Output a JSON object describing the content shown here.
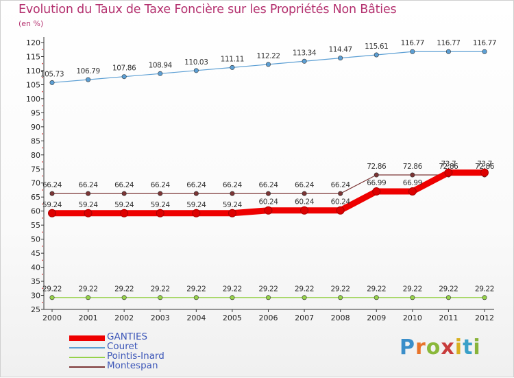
{
  "title": "Evolution du Taux de Taxe Foncière sur les Propriétés Non Bâties",
  "unit": "(en %)",
  "brand": {
    "letters": [
      "P",
      "r",
      "o",
      "x",
      "i",
      "t",
      "i"
    ],
    "colors": [
      "#3a8ec9",
      "#e8742a",
      "#8ab83a",
      "#c83c3c",
      "#d8b020",
      "#3aa0c8",
      "#88b33a"
    ]
  },
  "chart_data": {
    "type": "line",
    "title": "Evolution du Taux de Taxe Foncière sur les Propriétés Non Bâties",
    "ylabel": "(en %)",
    "x": [
      "2000",
      "2001",
      "2002",
      "2003",
      "2004",
      "2005",
      "2006",
      "2007",
      "2008",
      "2009",
      "2010",
      "2011",
      "2012"
    ],
    "ylim": [
      25,
      120
    ],
    "yticks": [
      25,
      30,
      35,
      40,
      45,
      50,
      55,
      60,
      65,
      70,
      75,
      80,
      85,
      90,
      95,
      100,
      105,
      110,
      115,
      120
    ],
    "grid": false,
    "legend": "bottom-left",
    "series": [
      {
        "name": "Couret",
        "color": "#5c9fd4",
        "values": [
          105.73,
          106.79,
          107.86,
          108.94,
          110.03,
          111.11,
          112.22,
          113.34,
          114.47,
          115.61,
          116.77,
          116.77,
          116.77
        ],
        "labels": [
          "105.73",
          "106.79",
          "107.86",
          "108.94",
          "110.03",
          "111.11",
          "112.22",
          "113.34",
          "114.47",
          "115.61",
          "116.77",
          "116.77",
          "116.77"
        ]
      },
      {
        "name": "Montespan",
        "color": "#7b3535",
        "values": [
          66.24,
          66.24,
          66.24,
          66.24,
          66.24,
          66.24,
          66.24,
          66.24,
          66.24,
          72.86,
          72.86,
          72.86,
          72.86
        ],
        "labels": [
          "66.24",
          "66.24",
          "66.24",
          "66.24",
          "66.24",
          "66.24",
          "66.24",
          "66.24",
          "66.24",
          "72.86",
          "72.86",
          "72.86",
          "72.86"
        ]
      },
      {
        "name": "GANTIES",
        "color": "#ee0000",
        "values": [
          59.24,
          59.24,
          59.24,
          59.24,
          59.24,
          59.24,
          60.24,
          60.24,
          60.24,
          66.99,
          66.99,
          73.7,
          73.7
        ],
        "labels": [
          "59.24",
          "59.24",
          "59.24",
          "59.24",
          "59.24",
          "59.24",
          "60.24",
          "60.24",
          "60.24",
          "66.99",
          "66.99",
          "73.7",
          "73.7"
        ]
      },
      {
        "name": "Pointis-Inard",
        "color": "#96d24a",
        "values": [
          29.22,
          29.22,
          29.22,
          29.22,
          29.22,
          29.22,
          29.22,
          29.22,
          29.22,
          29.22,
          29.22,
          29.22,
          29.22
        ],
        "labels": [
          "29.22",
          "29.22",
          "29.22",
          "29.22",
          "29.22",
          "29.22",
          "29.22",
          "29.22",
          "29.22",
          "29.22",
          "29.22",
          "29.22",
          "29.22"
        ]
      }
    ],
    "legend_items": [
      {
        "name": "GANTIES",
        "color": "#ee0000"
      },
      {
        "name": "Couret",
        "color": "#5c9fd4"
      },
      {
        "name": "Pointis-Inard",
        "color": "#96d24a"
      },
      {
        "name": "Montespan",
        "color": "#7b3535"
      }
    ]
  }
}
